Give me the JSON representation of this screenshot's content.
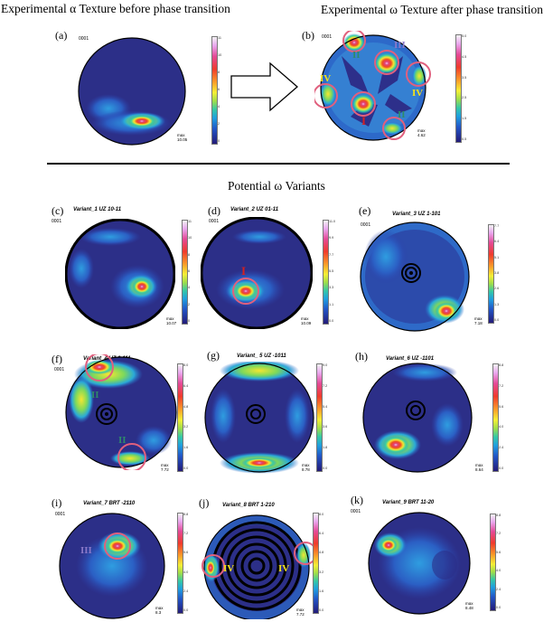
{
  "headings": {
    "left": "Experimental α Texture before phase transition",
    "right": "Experimental ω Texture after phase transition",
    "potential": "Potential ω Variants"
  },
  "code": "0001",
  "panels": [
    {
      "id": "a",
      "label": "(a)",
      "title": "",
      "max": "10.05",
      "ticks": [
        "11",
        "10",
        "8",
        "6",
        "4",
        "2",
        "0"
      ]
    },
    {
      "id": "b",
      "label": "(b)",
      "title": "",
      "max": "4.62",
      "ticks": [
        "5.0",
        "4.5",
        "3.5",
        "2.5",
        "1.5",
        "0.5"
      ],
      "annotations": [
        "I",
        "II",
        "II",
        "III",
        "IV",
        "IV"
      ]
    },
    {
      "id": "c",
      "label": "(c)",
      "title": "Variant_1 UZ 10-11",
      "max": "10.07",
      "ticks": [
        "11",
        "10",
        "8",
        "6",
        "4",
        "2",
        "0"
      ]
    },
    {
      "id": "d",
      "label": "(d)",
      "title": "Variant_2 UZ 01-11",
      "max": "10.09",
      "ticks": [
        "11.0",
        "9.9",
        "7.7",
        "5.5",
        "3.3",
        "1.1",
        "0.0"
      ],
      "annotations": [
        "I"
      ]
    },
    {
      "id": "e",
      "label": "(e)",
      "title": "Variant_3 UZ 1-101",
      "max": "7.18",
      "ticks": [
        "7.7",
        "6.4",
        "5.1",
        "3.8",
        "2.6",
        "1.3",
        "0.0"
      ]
    },
    {
      "id": "f",
      "label": "(f)",
      "title": "Variant_4 UZ 0-111",
      "max": "7.72",
      "ticks": [
        "8.0",
        "6.4",
        "4.8",
        "3.2",
        "1.6",
        "0.0"
      ],
      "annotations": [
        "II",
        "II"
      ]
    },
    {
      "id": "g",
      "label": "(g)",
      "title": "Variant_ 5 UZ -1011",
      "max": "8.78",
      "ticks": [
        "9.0",
        "7.2",
        "5.4",
        "3.6",
        "1.8",
        "0.0"
      ]
    },
    {
      "id": "h",
      "label": "(h)",
      "title": "Variant_6 UZ -1101",
      "max": "8.64",
      "ticks": [
        "8.8",
        "7.2",
        "5.6",
        "4.0",
        "2.4",
        "0.0"
      ]
    },
    {
      "id": "i",
      "label": "(i)",
      "title": "Variant_7 BRT -2110",
      "max": "8.3",
      "ticks": [
        "8.8",
        "7.2",
        "5.6",
        "4.0",
        "2.4",
        "0.0"
      ],
      "annotations": [
        "III"
      ]
    },
    {
      "id": "j",
      "label": "(j)",
      "title": "Variant_8 BRT 1-210",
      "max": "7.72",
      "ticks": [
        "8.0",
        "6.4",
        "4.8",
        "3.2",
        "1.6",
        "0.0"
      ],
      "annotations": [
        "IV",
        "IV"
      ]
    },
    {
      "id": "k",
      "label": "(k)",
      "title": "Variant_9 BRT 11-20",
      "max": "8.48",
      "ticks": [
        "8.8",
        "7.2",
        "5.6",
        "4.0",
        "2.4",
        "0.0"
      ]
    }
  ],
  "colors": {
    "circle_marker": "#e0607e",
    "label_red": "#d42020",
    "label_green": "#2e8b6a",
    "label_yellow": "#f3e11a",
    "label_purple": "#8a79c9"
  }
}
